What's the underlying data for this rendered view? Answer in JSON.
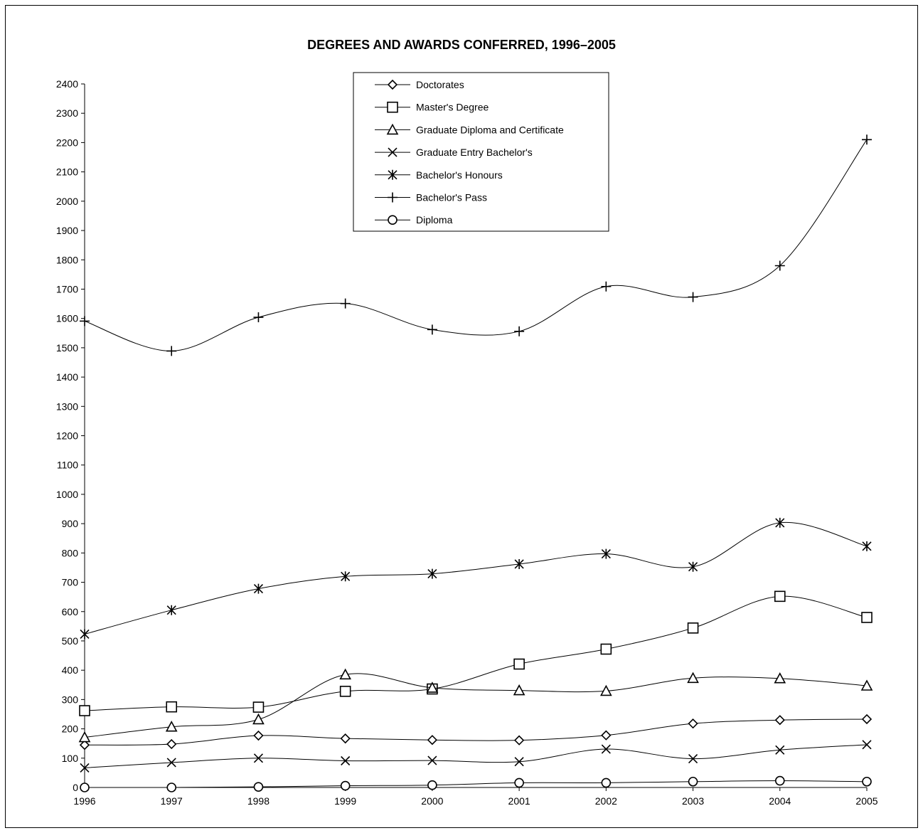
{
  "chart_data": {
    "type": "line",
    "title": "DEGREES AND AWARDS CONFERRED, 1996–2005",
    "xlabel": "",
    "ylabel": "",
    "x": [
      "1996",
      "1997",
      "1998",
      "1999",
      "2000",
      "2001",
      "2002",
      "2003",
      "2004",
      "2005"
    ],
    "ylim": [
      0,
      2400
    ],
    "yticks": [
      "0",
      "100",
      "200",
      "300",
      "400",
      "500",
      "600",
      "700",
      "800",
      "900",
      "1000",
      "1100",
      "1200",
      "1300",
      "1400",
      "1500",
      "1600",
      "1700",
      "1800",
      "1900",
      "2000",
      "2100",
      "2200",
      "2300",
      "2400"
    ],
    "grid": false,
    "legend_position": "top-center",
    "series": [
      {
        "name": "Doctorates",
        "marker": "diamond",
        "values": [
          145,
          148,
          177,
          167,
          162,
          161,
          178,
          218,
          230,
          233
        ]
      },
      {
        "name": "Master's Degree",
        "marker": "square",
        "values": [
          262,
          275,
          274,
          328,
          336,
          421,
          472,
          544,
          652,
          580
        ]
      },
      {
        "name": "Graduate Diploma and Certificate",
        "marker": "triangle",
        "values": [
          171,
          207,
          232,
          385,
          340,
          331,
          329,
          373,
          372,
          347
        ]
      },
      {
        "name": "Graduate Entry Bachelor's",
        "marker": "x",
        "values": [
          67,
          85,
          100,
          91,
          92,
          88,
          131,
          98,
          128,
          146
        ]
      },
      {
        "name": "Bachelor's Honours",
        "marker": "asterisk",
        "values": [
          523,
          605,
          678,
          720,
          729,
          762,
          797,
          753,
          903,
          823
        ]
      },
      {
        "name": "Bachelor's Pass",
        "marker": "plus",
        "values": [
          1591,
          1489,
          1604,
          1651,
          1562,
          1556,
          1709,
          1673,
          1780,
          2210
        ]
      },
      {
        "name": "Diploma",
        "marker": "circle",
        "values": [
          0,
          0,
          2,
          6,
          8,
          16,
          16,
          20,
          23,
          20
        ]
      }
    ]
  }
}
